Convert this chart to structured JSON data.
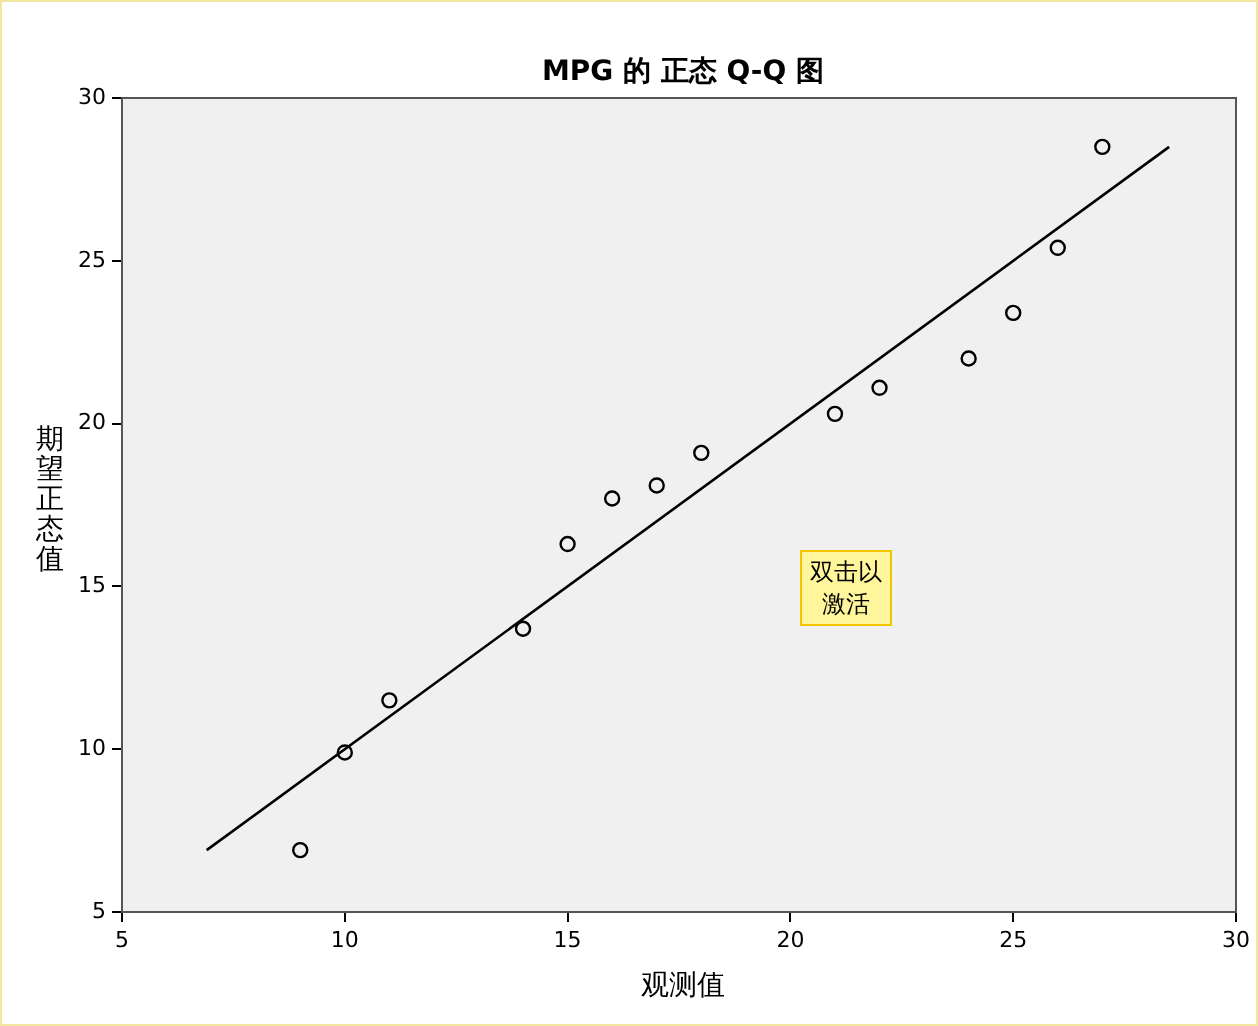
{
  "chart_data": {
    "type": "scatter",
    "title": "MPG 的 正态 Q-Q 图",
    "xlabel": "观测值",
    "ylabel": "期望正态值",
    "annotations": [
      "双击以激活"
    ],
    "xlim": [
      5,
      30
    ],
    "xticks": [
      5,
      10,
      15,
      20,
      25,
      30
    ],
    "ylim": [
      5,
      30
    ],
    "yticks": [
      5,
      10,
      15,
      20,
      25,
      30
    ],
    "grid": false,
    "legend": false,
    "series": [
      {
        "marker": "circle",
        "color": "#000000",
        "x": [
          9,
          10,
          11,
          14,
          15,
          16,
          17,
          18,
          21,
          22,
          24,
          25,
          26,
          27
        ],
        "values": [
          6.9,
          9.9,
          11.5,
          13.7,
          16.3,
          17.7,
          18.1,
          19.1,
          20.3,
          21.1,
          22.0,
          23.4,
          25.4,
          28.5
        ]
      },
      {
        "type": "line",
        "marker": "none",
        "line_style": "solid",
        "color": "#000000",
        "x": [
          6.9,
          28.5
        ],
        "values": [
          6.9,
          28.5
        ]
      }
    ]
  }
}
